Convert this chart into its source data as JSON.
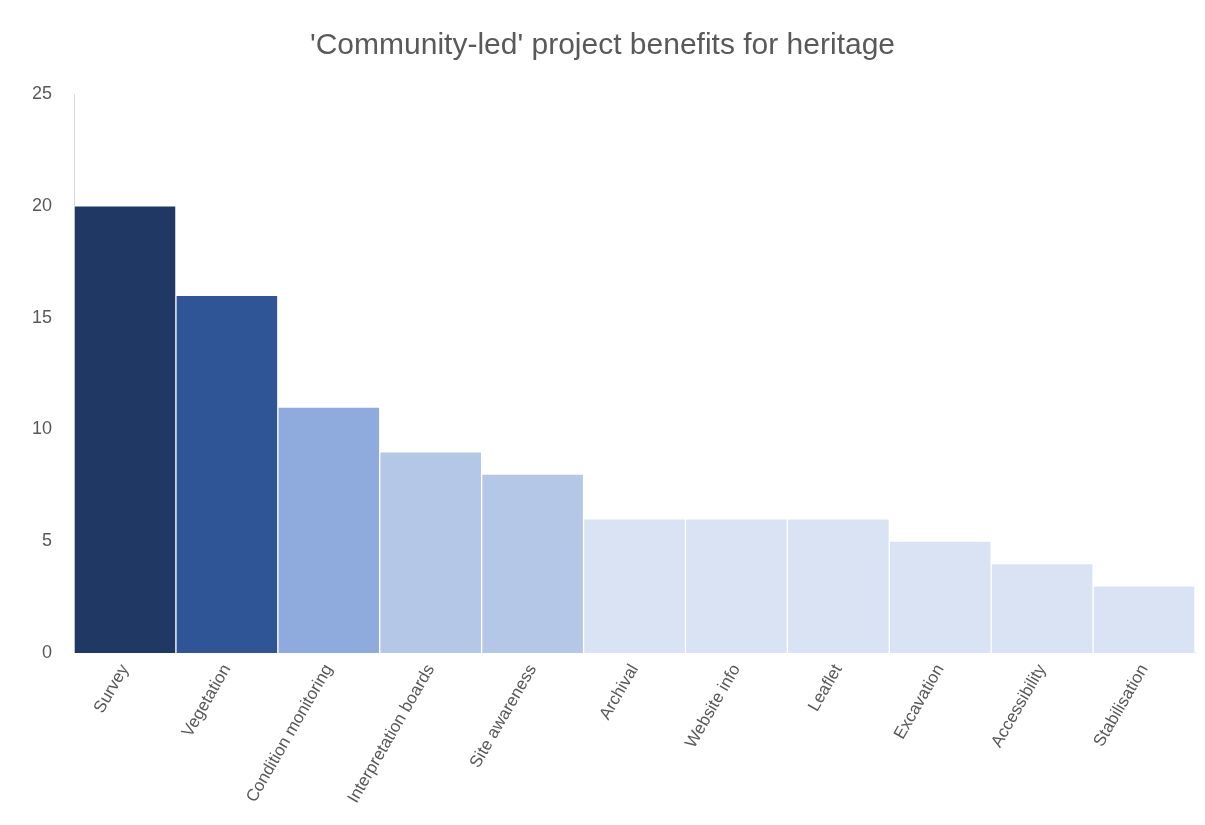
{
  "chart_data": {
    "type": "bar",
    "title": "'Community-led' project benefits for heritage",
    "categories": [
      "Survey",
      "Vegetation",
      "Condition monitoring",
      "Interpretation boards",
      "Site awareness",
      "Archival",
      "Website info",
      "Leaflet",
      "Excavation",
      "Accessibility",
      "Stabilisation"
    ],
    "values": [
      20,
      16,
      11,
      9,
      8,
      6,
      6,
      6,
      5,
      4,
      3
    ],
    "colors": [
      "#203864",
      "#2f5597",
      "#8faadc",
      "#b4c7e7",
      "#b4c7e7",
      "#dae3f3",
      "#dae3f3",
      "#dae3f3",
      "#dae3f3",
      "#dae3f3",
      "#dae3f3"
    ],
    "ylim": [
      0,
      25
    ],
    "yticks": [
      0,
      5,
      10,
      15,
      20,
      25
    ],
    "grid": false,
    "legend": false
  }
}
